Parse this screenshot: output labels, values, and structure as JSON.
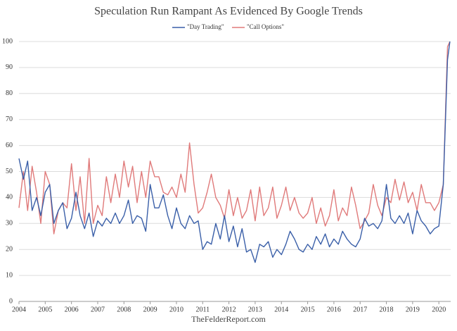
{
  "chart_data": {
    "type": "line",
    "title": "Speculation Run Rampant As Evidenced By Google Trends",
    "source": "TheFelderReport.com",
    "xlim": [
      2004,
      2020.45
    ],
    "xticks": [
      2004,
      2005,
      2006,
      2007,
      2008,
      2009,
      2010,
      2011,
      2012,
      2013,
      2014,
      2015,
      2016,
      2017,
      2018,
      2019,
      2020
    ],
    "ylim": [
      0,
      100
    ],
    "yticks": [
      0,
      10,
      20,
      30,
      40,
      50,
      60,
      70,
      80,
      90,
      100
    ],
    "grid": true,
    "legend": "top",
    "x": [
      2004,
      2004.17,
      2004.33,
      2004.5,
      2004.67,
      2004.83,
      2005,
      2005.17,
      2005.33,
      2005.5,
      2005.67,
      2005.83,
      2006,
      2006.17,
      2006.33,
      2006.5,
      2006.67,
      2006.83,
      2007,
      2007.17,
      2007.33,
      2007.5,
      2007.67,
      2007.83,
      2008,
      2008.17,
      2008.33,
      2008.5,
      2008.67,
      2008.83,
      2009,
      2009.17,
      2009.33,
      2009.5,
      2009.67,
      2009.83,
      2010,
      2010.17,
      2010.33,
      2010.5,
      2010.67,
      2010.83,
      2011,
      2011.17,
      2011.33,
      2011.5,
      2011.67,
      2011.83,
      2012,
      2012.17,
      2012.33,
      2012.5,
      2012.67,
      2012.83,
      2013,
      2013.17,
      2013.33,
      2013.5,
      2013.67,
      2013.83,
      2014,
      2014.17,
      2014.33,
      2014.5,
      2014.67,
      2014.83,
      2015,
      2015.17,
      2015.33,
      2015.5,
      2015.67,
      2015.83,
      2016,
      2016.17,
      2016.33,
      2016.5,
      2016.67,
      2016.83,
      2017,
      2017.17,
      2017.33,
      2017.5,
      2017.67,
      2017.83,
      2018,
      2018.17,
      2018.33,
      2018.5,
      2018.67,
      2018.83,
      2019,
      2019.17,
      2019.33,
      2019.5,
      2019.67,
      2019.83,
      2020,
      2020.17,
      2020.33,
      2020.42
    ],
    "series": [
      {
        "name": "\"Day Trading\"",
        "color": "#3a5fa8",
        "values": [
          55,
          47,
          54,
          35,
          40,
          33,
          42,
          45,
          30,
          35,
          38,
          28,
          32,
          42,
          33,
          28,
          34,
          25,
          31,
          29,
          32,
          30,
          34,
          30,
          33,
          39,
          30,
          33,
          32,
          27,
          45,
          36,
          36,
          41,
          33,
          28,
          36,
          30,
          28,
          33,
          30,
          31,
          20,
          23,
          22,
          30,
          24,
          33,
          23,
          29,
          21,
          28,
          19,
          20,
          15,
          22,
          21,
          23,
          17,
          20,
          18,
          22,
          27,
          24,
          20,
          19,
          22,
          20,
          25,
          22,
          26,
          21,
          24,
          22,
          27,
          24,
          22,
          21,
          24,
          32,
          29,
          30,
          28,
          31,
          45,
          32,
          30,
          33,
          30,
          34,
          26,
          35,
          31,
          29,
          26,
          28,
          29,
          45,
          93,
          100
        ]
      },
      {
        "name": "\"Call Options\"",
        "color": "#e07a7a",
        "values": [
          36,
          50,
          35,
          52,
          42,
          30,
          50,
          45,
          26,
          35,
          38,
          36,
          53,
          35,
          48,
          30,
          55,
          30,
          37,
          33,
          48,
          38,
          49,
          40,
          54,
          44,
          52,
          38,
          50,
          40,
          54,
          48,
          48,
          42,
          41,
          44,
          40,
          49,
          42,
          61,
          45,
          34,
          36,
          42,
          49,
          40,
          37,
          32,
          43,
          33,
          40,
          32,
          35,
          43,
          31,
          44,
          33,
          36,
          44,
          32,
          37,
          44,
          35,
          40,
          34,
          32,
          34,
          40,
          30,
          36,
          29,
          33,
          43,
          31,
          36,
          33,
          44,
          37,
          28,
          31,
          34,
          45,
          37,
          33,
          40,
          38,
          47,
          39,
          46,
          38,
          42,
          35,
          45,
          38,
          38,
          35,
          38,
          45,
          98,
          100
        ]
      }
    ]
  }
}
